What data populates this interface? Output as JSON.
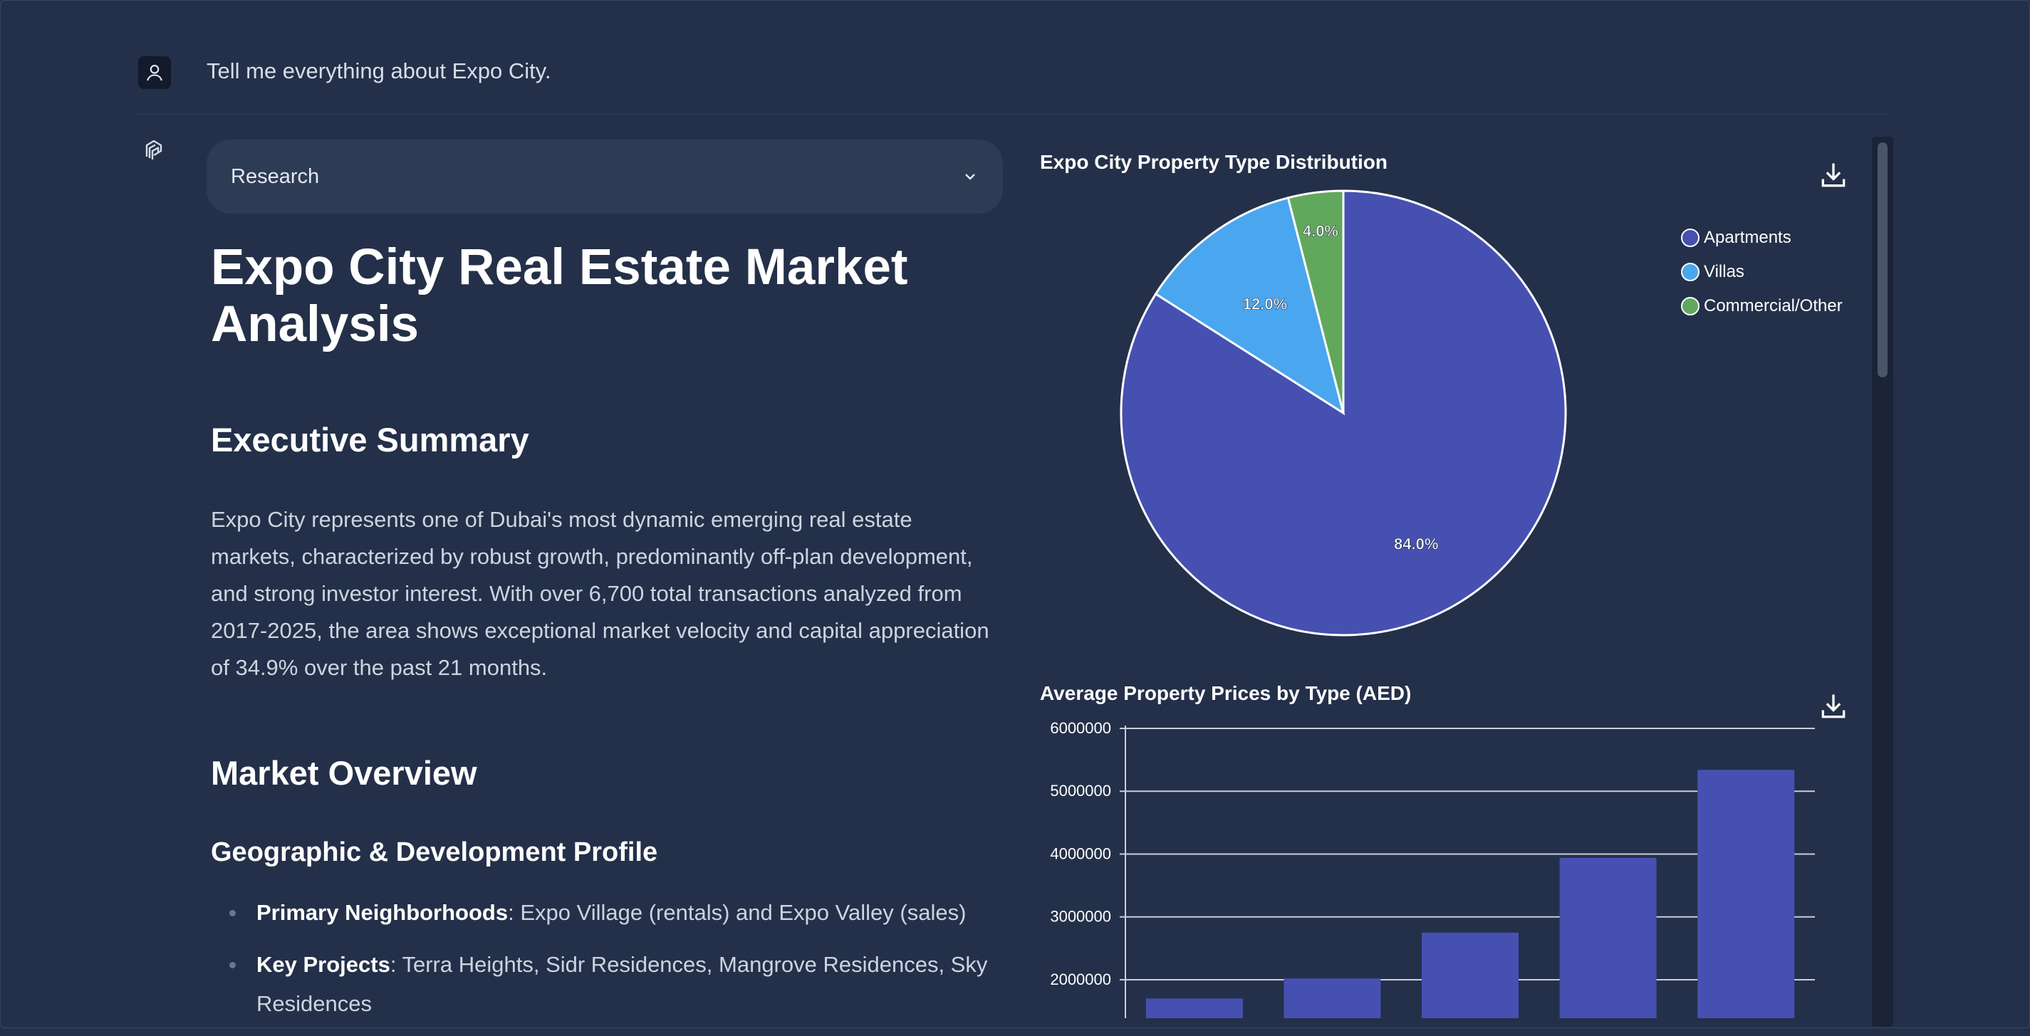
{
  "user_message": "Tell me everything about Expo City.",
  "mode_selector": {
    "label": "Research"
  },
  "report": {
    "title": "Expo City Real Estate Market Analysis",
    "sections": {
      "executive_summary": {
        "heading": "Executive Summary",
        "text": "Expo City represents one of Dubai's most dynamic emerging real estate markets, characterized by robust growth, predominantly off-plan development, and strong investor interest. With over 6,700 total transactions analyzed from 2017-2025, the area shows exceptional market velocity and capital appreciation of 34.9% over the past 21 months."
      },
      "market_overview": {
        "heading": "Market Overview",
        "subheading": "Geographic & Development Profile",
        "bullets": [
          {
            "label": "Primary Neighborhoods",
            "text": ": Expo Village (rentals) and Expo Valley (sales)"
          },
          {
            "label": "Key Projects",
            "text": ": Terra Heights, Sidr Residences, Mangrove Residences, Sky Residences"
          }
        ]
      }
    }
  },
  "colors": {
    "apartments": "#4650b1",
    "villas": "#4aa6ee",
    "commercial": "#62a85c",
    "bar": "#4650b1"
  },
  "chart_data": [
    {
      "type": "pie",
      "title": "Expo City Property Type Distribution",
      "labels": [
        "Apartments",
        "Villas",
        "Commercial/Other"
      ],
      "values": [
        84.0,
        12.0,
        4.0
      ],
      "value_labels": [
        "84.0%",
        "12.0%",
        "4.0%"
      ],
      "legend_position": "top-right"
    },
    {
      "type": "bar",
      "title": "Average Property Prices by Type (AED)",
      "y_ticks": [
        "6000000",
        "5000000",
        "4000000",
        "3000000",
        "2000000"
      ],
      "values": [
        1700000,
        2020000,
        2750000,
        3940000,
        5340000
      ],
      "ylim": [
        1700000,
        6000000
      ],
      "grid": true
    }
  ]
}
